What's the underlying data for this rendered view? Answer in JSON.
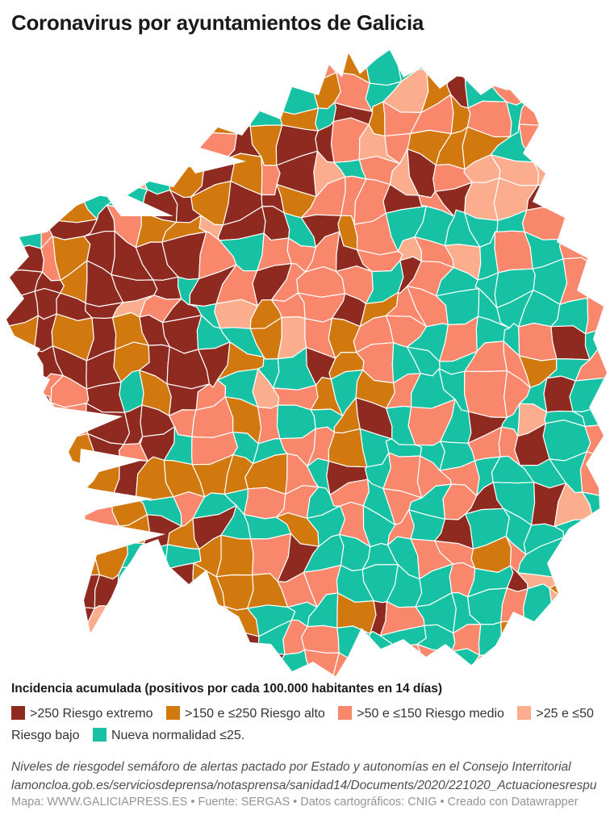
{
  "title": "Coronavirus por ayuntamientos de Galicia",
  "legend": {
    "title": "Incidencia acumulada (positivos por cada 100.000 habitantes en 14 días)",
    "items": [
      {
        "id": "riesgo-extremo",
        "label": ">250 Riesgo extremo",
        "color": "#8e2a20"
      },
      {
        "id": "riesgo-alto",
        "label": ">150 e ≤250 Riesgo alto",
        "color": "#d1780f"
      },
      {
        "id": "riesgo-medio",
        "label": ">50 e ≤150 Riesgo medio",
        "color": "#f8876c"
      },
      {
        "id": "riesgo-bajo",
        "label": ">25 e ≤50 Riesgo bajo",
        "color": "#fbad8d"
      },
      {
        "id": "nueva-normalidad",
        "label": "Nueva normalidad ≤25.",
        "color": "#16c2a3"
      }
    ]
  },
  "notes": "Niveles de riesgodel semáforo de alertas pactado por Estado y autonomías en el Consejo Interritorial lamoncloa.gob.es/serviciosdeprensa/notasprensa/sanidad14/Documents/2020/221020_Actuacionesrespu",
  "attribution": "Mapa: WWW.GALICIAPRESS.ES • Fuente: SERGAS • Datos cartográficos: CNIG • Creado con Datawrapper",
  "chart_data": {
    "type": "choropleth",
    "title": "Coronavirus por ayuntamientos de Galicia",
    "geography": "Galicia (España), por ayuntamientos/municipios",
    "measure": "Incidencia acumulada (positivos por cada 100.000 habitantes en 14 días)",
    "classes": [
      {
        "range": ">250",
        "label": "Riesgo extremo",
        "color": "#8e2a20"
      },
      {
        "range": ">150 e ≤250",
        "label": "Riesgo alto",
        "color": "#d1780f"
      },
      {
        "range": ">50 e ≤150",
        "label": "Riesgo medio",
        "color": "#f8876c"
      },
      {
        "range": ">25 e ≤50",
        "label": "Riesgo bajo",
        "color": "#fbad8d"
      },
      {
        "range": "≤25",
        "label": "Nueva normalidad",
        "color": "#16c2a3"
      }
    ],
    "legend_position": "bottom",
    "source": "SERGAS",
    "map_author": "WWW.GALICIAPRESS.ES",
    "cartography": "CNIG",
    "tool": "Datawrapper"
  }
}
